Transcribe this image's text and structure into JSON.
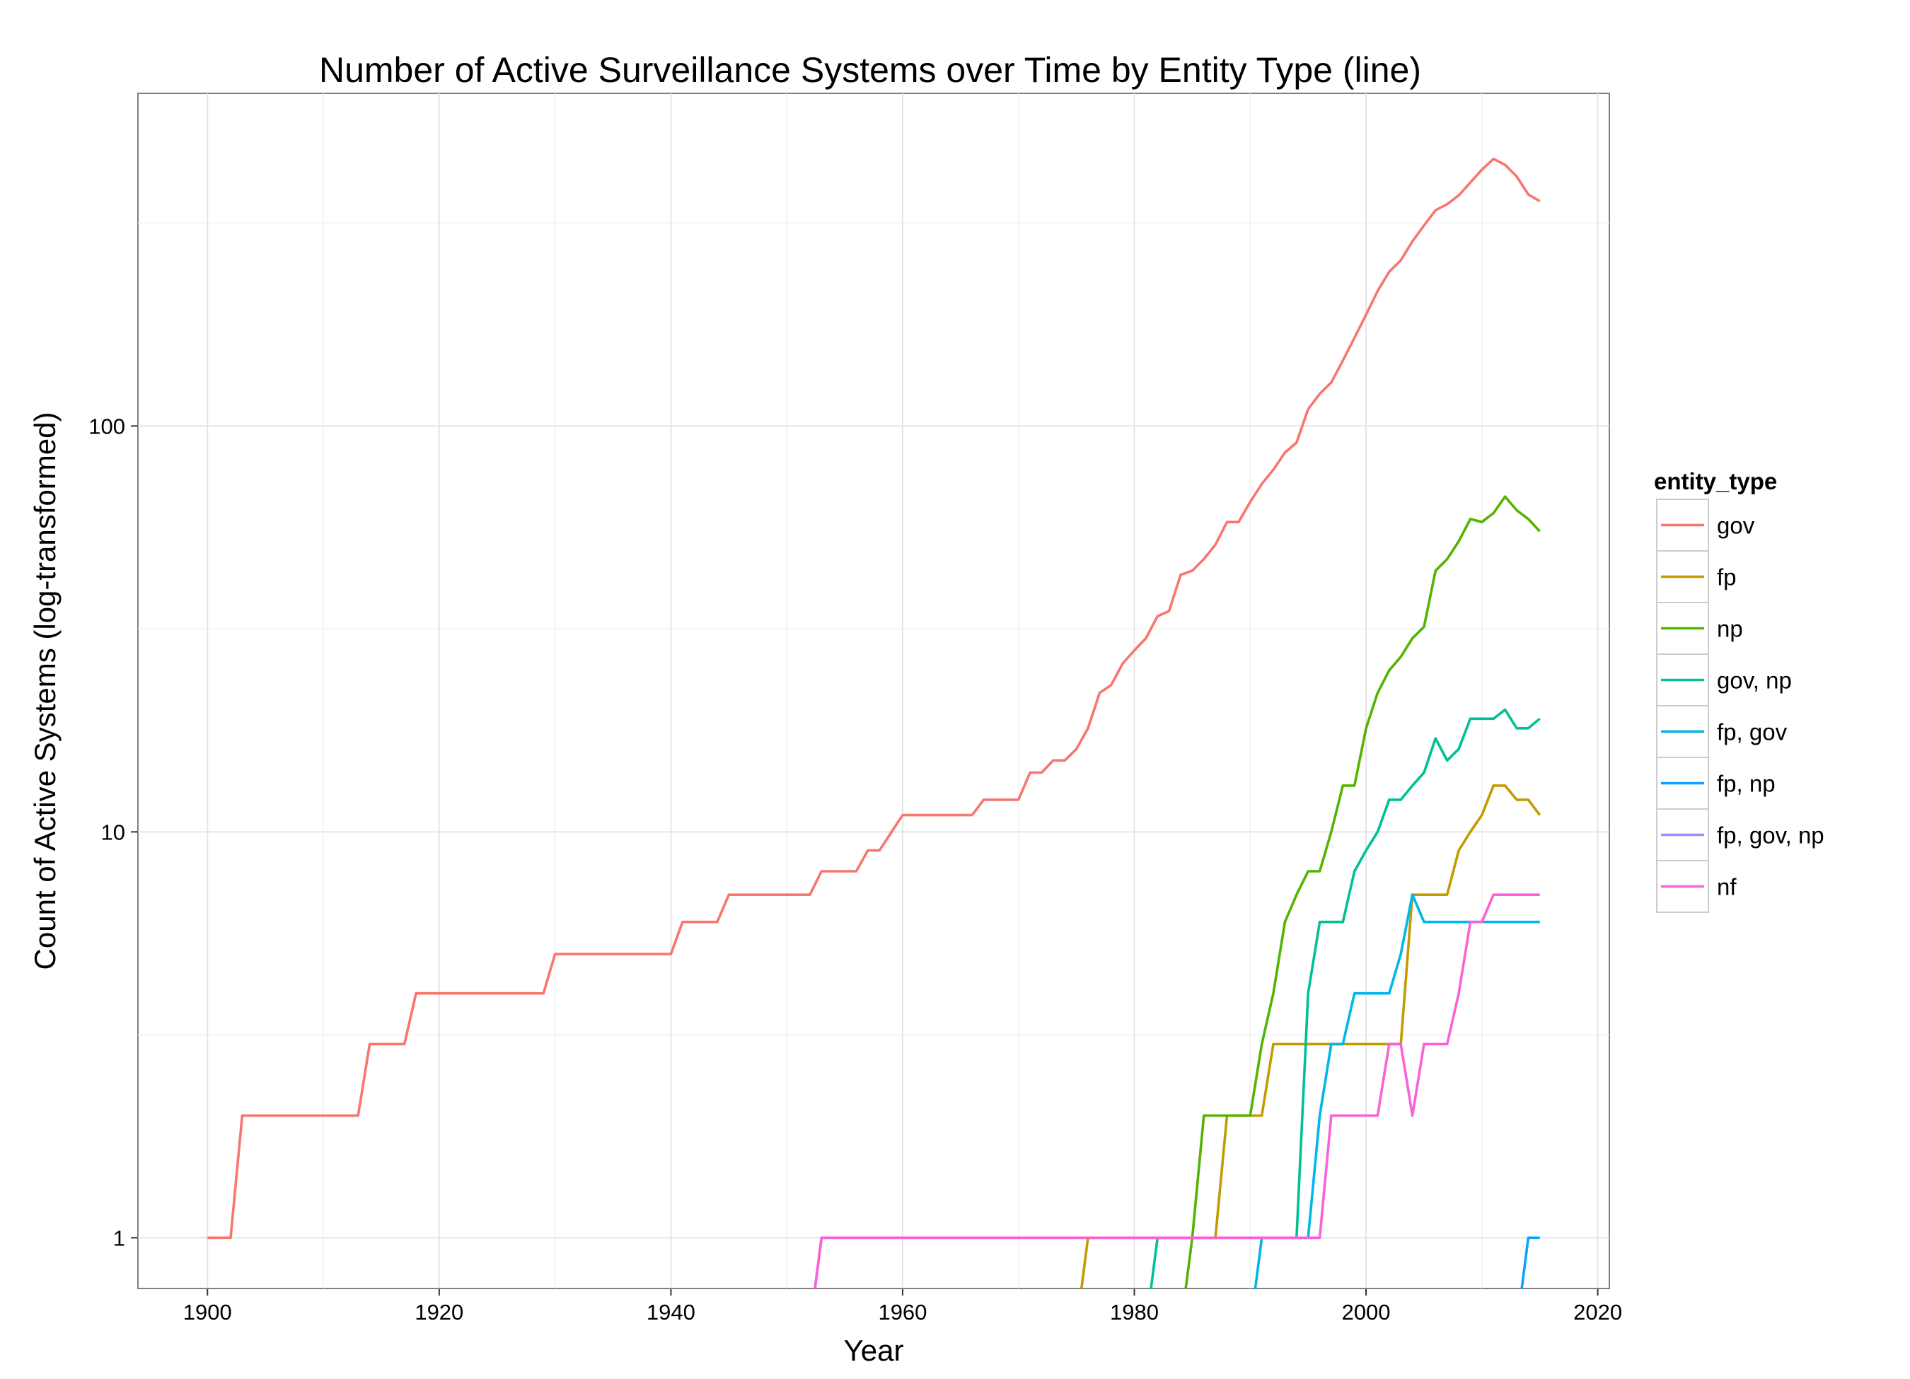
{
  "chart_data": {
    "type": "line",
    "title": "Number of Active Surveillance Systems over Time by Entity Type (line)",
    "xlabel": "Year",
    "ylabel": "Count of Active Systems (log-transformed)",
    "xlim": [
      1894,
      2021
    ],
    "ylim": [
      0.75,
      660
    ],
    "y_scale": "log10",
    "x_ticks": [
      1900,
      1920,
      1940,
      1960,
      1980,
      2000,
      2020
    ],
    "y_ticks": [
      1,
      10,
      100
    ],
    "y_tick_labels": [
      "1",
      "10",
      "100"
    ],
    "grid": true,
    "legend": {
      "title": "entity_type",
      "position": "right"
    },
    "series": [
      {
        "name": "gov",
        "color": "#F8766D",
        "points": [
          [
            1900,
            1
          ],
          [
            1902,
            1
          ],
          [
            1903,
            2
          ],
          [
            1913,
            2
          ],
          [
            1914,
            3
          ],
          [
            1917,
            3
          ],
          [
            1918,
            4
          ],
          [
            1929,
            4
          ],
          [
            1930,
            5
          ],
          [
            1940,
            5
          ],
          [
            1941,
            6
          ],
          [
            1944,
            6
          ],
          [
            1945,
            7
          ],
          [
            1952,
            7
          ],
          [
            1953,
            8
          ],
          [
            1956,
            8
          ],
          [
            1957,
            9
          ],
          [
            1958,
            9
          ],
          [
            1960,
            11
          ],
          [
            1966,
            11
          ],
          [
            1967,
            12
          ],
          [
            1970,
            12
          ],
          [
            1971,
            14
          ],
          [
            1972,
            14
          ],
          [
            1973,
            15
          ],
          [
            1974,
            15
          ],
          [
            1975,
            16
          ],
          [
            1976,
            18
          ],
          [
            1977,
            22
          ],
          [
            1978,
            23
          ],
          [
            1979,
            26
          ],
          [
            1980,
            28
          ],
          [
            1981,
            30
          ],
          [
            1982,
            34
          ],
          [
            1983,
            35
          ],
          [
            1984,
            43
          ],
          [
            1985,
            44
          ],
          [
            1986,
            47
          ],
          [
            1987,
            51
          ],
          [
            1988,
            58
          ],
          [
            1989,
            58
          ],
          [
            1990,
            65
          ],
          [
            1991,
            72
          ],
          [
            1992,
            78
          ],
          [
            1993,
            86
          ],
          [
            1994,
            91
          ],
          [
            1995,
            110
          ],
          [
            1996,
            120
          ],
          [
            1997,
            128
          ],
          [
            1998,
            145
          ],
          [
            1999,
            165
          ],
          [
            2000,
            188
          ],
          [
            2001,
            215
          ],
          [
            2002,
            240
          ],
          [
            2003,
            256
          ],
          [
            2004,
            285
          ],
          [
            2005,
            312
          ],
          [
            2006,
            340
          ],
          [
            2007,
            352
          ],
          [
            2008,
            370
          ],
          [
            2009,
            398
          ],
          [
            2010,
            428
          ],
          [
            2011,
            455
          ],
          [
            2012,
            440
          ],
          [
            2013,
            412
          ],
          [
            2014,
            372
          ],
          [
            2015,
            358
          ]
        ]
      },
      {
        "name": "fp",
        "color": "#C49A00",
        "points": [
          [
            1975,
            0.6
          ],
          [
            1976,
            1
          ],
          [
            1987,
            1
          ],
          [
            1988,
            2
          ],
          [
            1990,
            2
          ],
          [
            1991,
            2
          ],
          [
            1992,
            3
          ],
          [
            1996,
            3
          ],
          [
            2003,
            3
          ],
          [
            2004,
            7
          ],
          [
            2007,
            7
          ],
          [
            2008,
            9
          ],
          [
            2009,
            10
          ],
          [
            2010,
            11
          ],
          [
            2011,
            13
          ],
          [
            2012,
            13
          ],
          [
            2013,
            12
          ],
          [
            2014,
            12
          ],
          [
            2015,
            11
          ]
        ]
      },
      {
        "name": "np",
        "color": "#53B400",
        "points": [
          [
            1984,
            0.6
          ],
          [
            1985,
            1
          ],
          [
            1986,
            2
          ],
          [
            1990,
            2
          ],
          [
            1991,
            3
          ],
          [
            1992,
            4
          ],
          [
            1993,
            6
          ],
          [
            1994,
            7
          ],
          [
            1995,
            8
          ],
          [
            1996,
            8
          ],
          [
            1997,
            10
          ],
          [
            1998,
            13
          ],
          [
            1999,
            13
          ],
          [
            2000,
            18
          ],
          [
            2001,
            22
          ],
          [
            2002,
            25
          ],
          [
            2003,
            27
          ],
          [
            2004,
            30
          ],
          [
            2005,
            32
          ],
          [
            2006,
            44
          ],
          [
            2007,
            47
          ],
          [
            2008,
            52
          ],
          [
            2009,
            59
          ],
          [
            2010,
            58
          ],
          [
            2011,
            61
          ],
          [
            2012,
            67
          ],
          [
            2013,
            62
          ],
          [
            2014,
            59
          ],
          [
            2015,
            55
          ]
        ]
      },
      {
        "name": "gov, np",
        "color": "#00C094",
        "points": [
          [
            1981,
            0.6
          ],
          [
            1982,
            1
          ],
          [
            1994,
            1
          ],
          [
            1995,
            4
          ],
          [
            1996,
            6
          ],
          [
            1997,
            6
          ],
          [
            1998,
            6
          ],
          [
            1999,
            8
          ],
          [
            2000,
            9
          ],
          [
            2001,
            10
          ],
          [
            2002,
            12
          ],
          [
            2003,
            12
          ],
          [
            2004,
            13
          ],
          [
            2005,
            14
          ],
          [
            2006,
            17
          ],
          [
            2007,
            15
          ],
          [
            2008,
            16
          ],
          [
            2009,
            19
          ],
          [
            2010,
            19
          ],
          [
            2011,
            19
          ],
          [
            2012,
            20
          ],
          [
            2013,
            18
          ],
          [
            2014,
            18
          ],
          [
            2015,
            19
          ]
        ]
      },
      {
        "name": "fp, gov",
        "color": "#00B6EB",
        "points": [
          [
            1990,
            0.6
          ],
          [
            1991,
            1
          ],
          [
            1995,
            1
          ],
          [
            1996,
            2
          ],
          [
            1997,
            3
          ],
          [
            1998,
            3
          ],
          [
            1999,
            4
          ],
          [
            2000,
            4
          ],
          [
            2001,
            4
          ],
          [
            2002,
            4
          ],
          [
            2003,
            5
          ],
          [
            2004,
            7
          ],
          [
            2005,
            6
          ],
          [
            2015,
            6
          ]
        ]
      },
      {
        "name": "fp, np",
        "color": "#06A4FF",
        "points": [
          [
            2013,
            0.6
          ],
          [
            2014,
            1
          ],
          [
            2015,
            1
          ]
        ]
      },
      {
        "name": "fp, gov, np",
        "color": "#A58AFF",
        "points": [
          [
            1952,
            0.6
          ],
          [
            1953,
            1
          ],
          [
            1996,
            1
          ]
        ]
      },
      {
        "name": "nf",
        "color": "#FB61D7",
        "points": [
          [
            1952,
            0.6
          ],
          [
            1953,
            1
          ],
          [
            1996,
            1
          ],
          [
            1997,
            2
          ],
          [
            2001,
            2
          ],
          [
            2002,
            3
          ],
          [
            2003,
            3
          ],
          [
            2004,
            2
          ],
          [
            2005,
            3
          ],
          [
            2007,
            3
          ],
          [
            2008,
            4
          ],
          [
            2009,
            6
          ],
          [
            2010,
            6
          ],
          [
            2011,
            7
          ],
          [
            2015,
            7
          ]
        ]
      }
    ]
  }
}
